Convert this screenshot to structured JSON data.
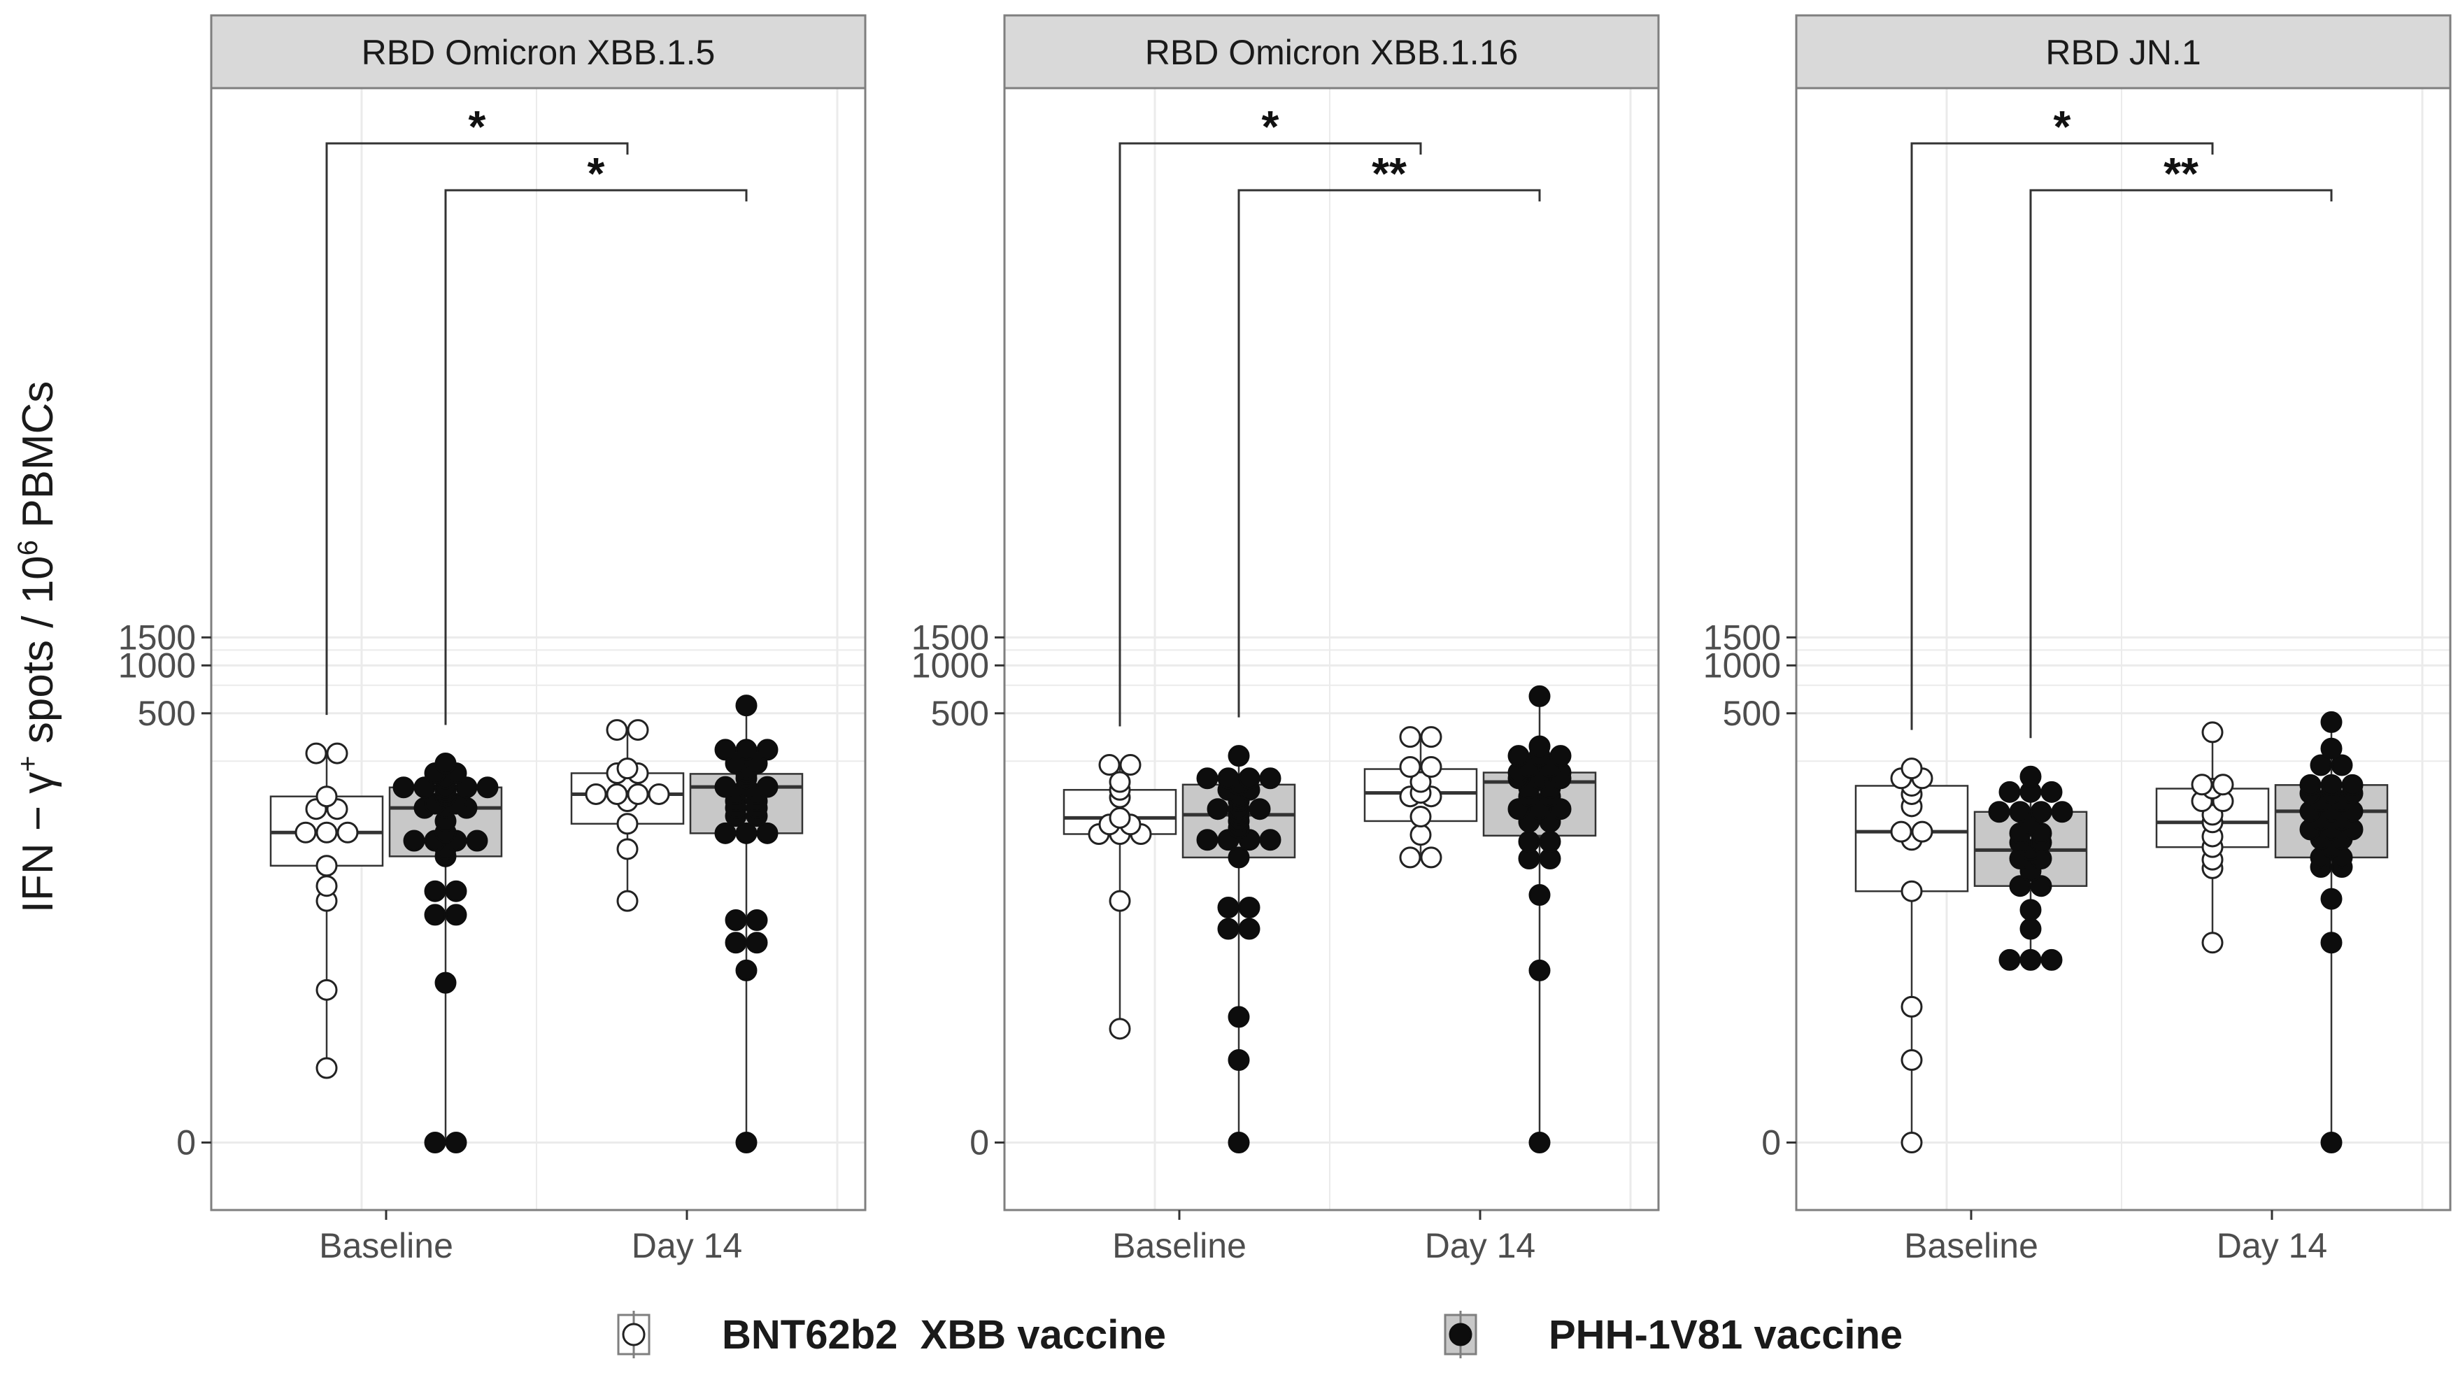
{
  "chart_data": {
    "type": "box",
    "ylabel": {
      "main": "IFN − γ",
      "sup1": "+",
      "mid": " spots / 10",
      "sup2": "6",
      "end": " PBMCs"
    },
    "yscale": "pseudo-log",
    "yticks": [
      0,
      500,
      1000,
      1500
    ],
    "ytick_labels": [
      "0",
      "500",
      "1000",
      "1500"
    ],
    "categories": [
      "Baseline",
      "Day 14"
    ],
    "legend": [
      {
        "name": "BNT62b2  XBB vaccine",
        "fill": "#ffffff",
        "box_fill": "#ffffff"
      },
      {
        "name": "PHH-1V81 vaccine",
        "fill": "#0d0d0d",
        "box_fill": "#c8c8c8"
      }
    ],
    "colors": {
      "strip_bg": "#d9d9d9",
      "grid": "#ebebeb",
      "panel_border": "#7f7f7f",
      "box_line": "#333333"
    },
    "panels": [
      {
        "title": "RBD Omicron XBB.1.5",
        "groups": [
          {
            "category": "Baseline",
            "series": "BNT62b2  XBB vaccine",
            "stats": {
              "min": 2.6,
              "q1": 55,
              "median": 89,
              "q3": 150,
              "max": 280
            },
            "points": [
              2.6,
              9,
              33,
              41,
              55,
              89,
              89,
              89,
              125,
              125,
              150,
              280,
              280
            ]
          },
          {
            "category": "Baseline",
            "series": "PHH-1V81 vaccine",
            "stats": {
              "min": 0,
              "q1": 63,
              "median": 127,
              "q3": 171,
              "max": 242
            },
            "points": [
              0,
              0,
              10,
              27,
              27,
              38,
              38,
              63,
              70,
              79,
              79,
              79,
              79,
              89,
              105,
              127,
              127,
              127,
              135,
              135,
              150,
              160,
              171,
              171,
              171,
              171,
              171,
              195,
              210,
              210,
              242
            ]
          },
          {
            "category": "Day 14",
            "series": "BNT62b2  XBB vaccine",
            "stats": {
              "min": 33,
              "q1": 101,
              "median": 155,
              "q3": 210,
              "max": 393
            },
            "points": [
              33,
              70,
              101,
              140,
              155,
              155,
              155,
              155,
              210,
              210,
              225,
              393,
              393
            ]
          },
          {
            "category": "Day 14",
            "series": "PHH-1V81 vaccine",
            "stats": {
              "min": 0,
              "q1": 88,
              "median": 172,
              "q3": 208,
              "max": 560
            },
            "points": [
              0,
              12,
              18,
              18,
              25,
              25,
              88,
              88,
              88,
              113,
              113,
              127,
              127,
              140,
              140,
              155,
              155,
              172,
              172,
              172,
              195,
              208,
              222,
              242,
              242,
              295,
              295,
              295,
              560
            ]
          }
        ],
        "significance": [
          {
            "label": "*",
            "from": "Baseline",
            "to": "Day 14",
            "series": "BNT62b2  XBB vaccine"
          },
          {
            "label": "*",
            "from": "Baseline",
            "to": "Day 14",
            "series": "PHH-1V81 vaccine"
          }
        ]
      },
      {
        "title": "RBD Omicron XBB.1.16",
        "groups": [
          {
            "category": "Baseline",
            "series": "BNT62b2  XBB vaccine",
            "stats": {
              "min": 5,
              "q1": 87,
              "median": 110,
              "q3": 165,
              "max": 237
            },
            "points": [
              5,
              33,
              87,
              87,
              87,
              100,
              100,
              110,
              148,
              165,
              185,
              237,
              237
            ]
          },
          {
            "category": "Baseline",
            "series": "PHH-1V81 vaccine",
            "stats": {
              "min": 0,
              "q1": 62,
              "median": 115,
              "q3": 178,
              "max": 270
            },
            "points": [
              0,
              3,
              6,
              22,
              22,
              30,
              30,
              62,
              80,
              80,
              80,
              80,
              95,
              105,
              115,
              125,
              125,
              125,
              140,
              150,
              165,
              165,
              178,
              195,
              195,
              195,
              195,
              270
            ]
          },
          {
            "category": "Day 14",
            "series": "BNT62b2  XBB vaccine",
            "stats": {
              "min": 62,
              "q1": 105,
              "median": 158,
              "q3": 223,
              "max": 355
            },
            "points": [
              62,
              62,
              86,
              112,
              150,
              150,
              158,
              185,
              230,
              230,
              355,
              355
            ]
          },
          {
            "category": "Day 14",
            "series": "PHH-1V81 vaccine",
            "stats": {
              "min": 0,
              "q1": 85,
              "median": 185,
              "q3": 212,
              "max": 640
            },
            "points": [
              0,
              12,
              36,
              61,
              61,
              78,
              78,
              104,
              104,
              125,
              125,
              125,
              150,
              150,
              170,
              170,
              195,
              195,
              195,
              212,
              212,
              212,
              230,
              230,
              270,
              270,
              270,
              310,
              640
            ]
          }
        ],
        "significance": [
          {
            "label": "*",
            "from": "Baseline",
            "to": "Day 14",
            "series": "BNT62b2  XBB vaccine"
          },
          {
            "label": "**",
            "from": "Baseline",
            "to": "Day 14",
            "series": "PHH-1V81 vaccine"
          }
        ]
      },
      {
        "title": "RBD JN.1",
        "groups": [
          {
            "category": "Baseline",
            "series": "BNT62b2  XBB vaccine",
            "stats": {
              "min": 0,
              "q1": 38,
              "median": 90,
              "q3": 175,
              "max": 225
            },
            "points": [
              0,
              3,
              7,
              38,
              80,
              90,
              90,
              130,
              155,
              175,
              195,
              195,
              225
            ]
          },
          {
            "category": "Baseline",
            "series": "PHH-1V81 vaccine",
            "stats": {
              "min": 14,
              "q1": 41,
              "median": 69,
              "q3": 120,
              "max": 200
            },
            "points": [
              14,
              14,
              14,
              22,
              29,
              41,
              41,
              51,
              61,
              61,
              69,
              77,
              77,
              88,
              88,
              102,
              120,
              120,
              120,
              120,
              160,
              160,
              160,
              200
            ]
          },
          {
            "category": "Day 14",
            "series": "BNT62b2  XBB vaccine",
            "stats": {
              "min": 18,
              "q1": 72,
              "median": 103,
              "q3": 168,
              "max": 380
            },
            "points": [
              18,
              53,
              60,
              72,
              84,
              103,
              115,
              140,
              140,
              168,
              178,
              178,
              380
            ]
          },
          {
            "category": "Day 14",
            "series": "PHH-1V81 vaccine",
            "stats": {
              "min": 0,
              "q1": 62,
              "median": 121,
              "q3": 177,
              "max": 440
            },
            "points": [
              0,
              18,
              34,
              54,
              54,
              62,
              62,
              72,
              81,
              81,
              93,
              93,
              93,
              107,
              107,
              121,
              121,
              121,
              140,
              140,
              157,
              157,
              157,
              177,
              177,
              177,
              236,
              236,
              300,
              440
            ]
          }
        ],
        "significance": [
          {
            "label": "*",
            "from": "Baseline",
            "to": "Day 14",
            "series": "BNT62b2  XBB vaccine"
          },
          {
            "label": "**",
            "from": "Baseline",
            "to": "Day 14",
            "series": "PHH-1V81 vaccine"
          }
        ]
      }
    ]
  }
}
